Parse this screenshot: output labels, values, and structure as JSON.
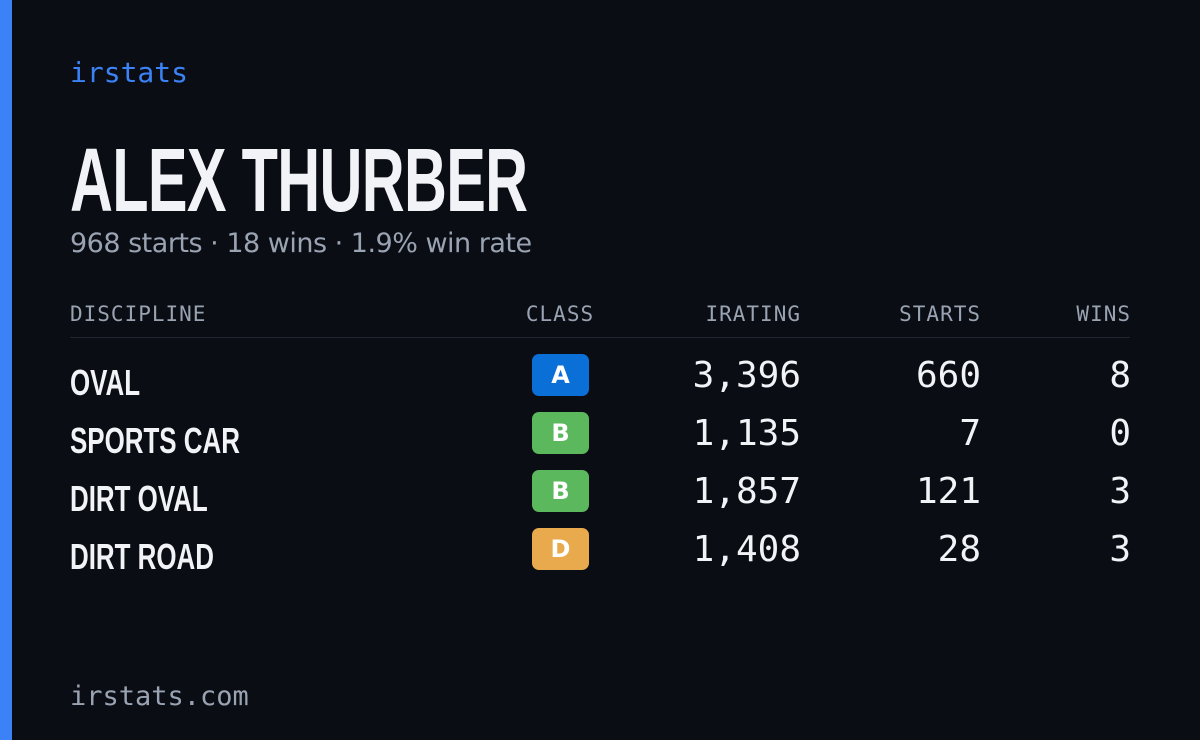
{
  "header": {
    "brand": "irstats",
    "name": "ALEX THURBER",
    "summary": "968 starts · 18 wins · 1.9% win rate"
  },
  "table": {
    "columns": [
      "DISCIPLINE",
      "CLASS",
      "IRATING",
      "STARTS",
      "WINS"
    ],
    "rows": [
      {
        "discipline": "OVAL",
        "class": "A",
        "class_color": "#0b6fd8",
        "irating": "3,396",
        "starts": "660",
        "wins": "8"
      },
      {
        "discipline": "SPORTS CAR",
        "class": "B",
        "class_color": "#5cb85c",
        "irating": "1,135",
        "starts": "7",
        "wins": "0"
      },
      {
        "discipline": "DIRT OVAL",
        "class": "B",
        "class_color": "#5cb85c",
        "irating": "1,857",
        "starts": "121",
        "wins": "3"
      },
      {
        "discipline": "DIRT ROAD",
        "class": "D",
        "class_color": "#e8aa4c",
        "irating": "1,408",
        "starts": "28",
        "wins": "3"
      }
    ]
  },
  "footer": {
    "site": "irstats.com"
  }
}
